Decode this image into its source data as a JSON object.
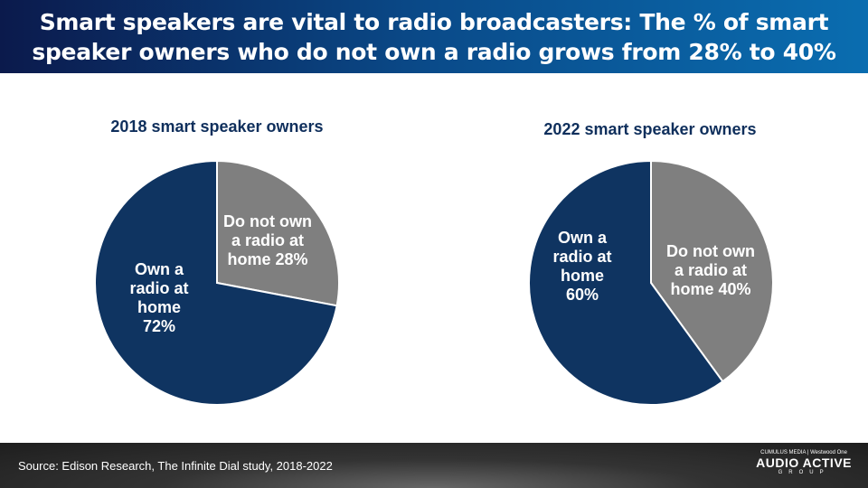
{
  "header": {
    "title": "Smart speakers are vital to radio broadcasters: The % of smart speaker owners who do not own a radio grows from 28% to 40%"
  },
  "chart_data": [
    {
      "type": "pie",
      "title": "2018 smart speaker owners",
      "slices": [
        {
          "label": "Do not own a radio at home 28%",
          "value": 28,
          "color": "#7f7f7f"
        },
        {
          "label": "Own a radio at home 72%",
          "value": 72,
          "color": "#0f3461"
        }
      ]
    },
    {
      "type": "pie",
      "title": "2022 smart speaker owners",
      "slices": [
        {
          "label": "Do not own a radio at home 40%",
          "value": 40,
          "color": "#7f7f7f"
        },
        {
          "label": "Own a radio at home 60%",
          "value": 60,
          "color": "#0f3461"
        }
      ]
    }
  ],
  "labels": {
    "p1_gray": "Do not own\na radio at\nhome 28%",
    "p1_blue": "Own a\nradio at\nhome\n72%",
    "p2_gray": "Do not own\na radio at\nhome 40%",
    "p2_blue": "Own a\nradio at\nhome\n60%"
  },
  "footer": {
    "source": "Source: Edison Research, The Infinite Dial study, 2018-2022",
    "logo_top": "CUMULUS MEDIA | Westwood One",
    "logo_main": "AUDIO ACTIVE",
    "logo_sub": "GROUP"
  }
}
